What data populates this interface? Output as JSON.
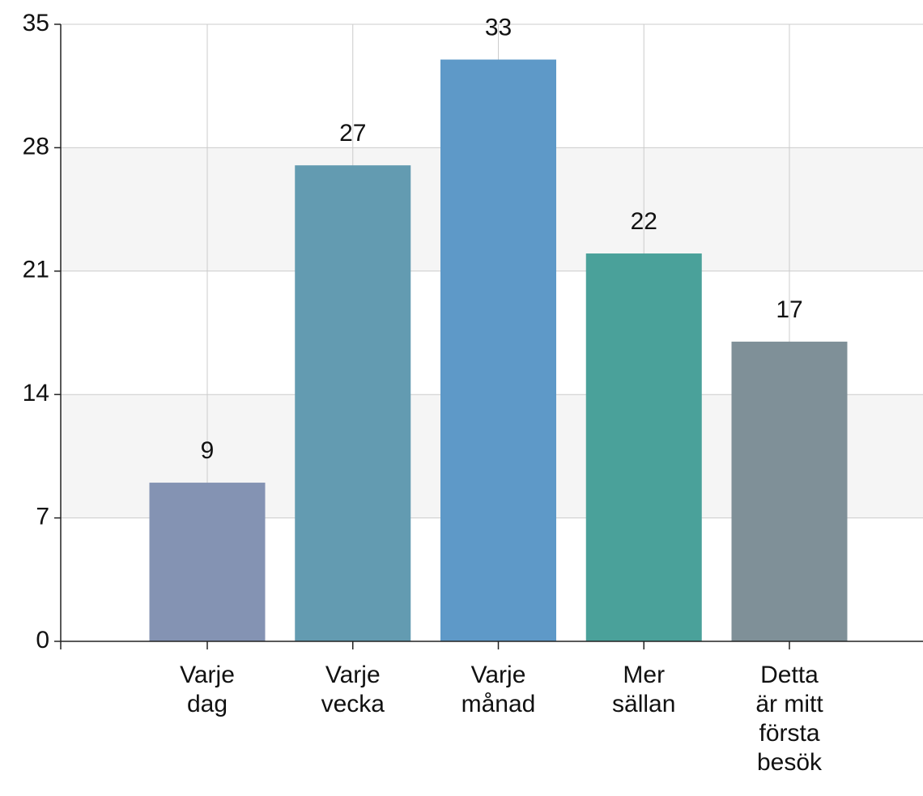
{
  "chart_data": {
    "type": "bar",
    "categories": [
      "Varje dag",
      "Varje vecka",
      "Varje månad",
      "Mer sällan",
      "Detta är mitt första besök"
    ],
    "values": [
      9,
      27,
      33,
      22,
      17
    ],
    "colors": [
      "#8493b3",
      "#639bb1",
      "#5e99c8",
      "#4aa19a",
      "#7f9098"
    ],
    "ylim": [
      0,
      35
    ],
    "yticks": [
      0,
      7,
      14,
      21,
      28,
      35
    ],
    "grid": true,
    "data_labels": true
  }
}
